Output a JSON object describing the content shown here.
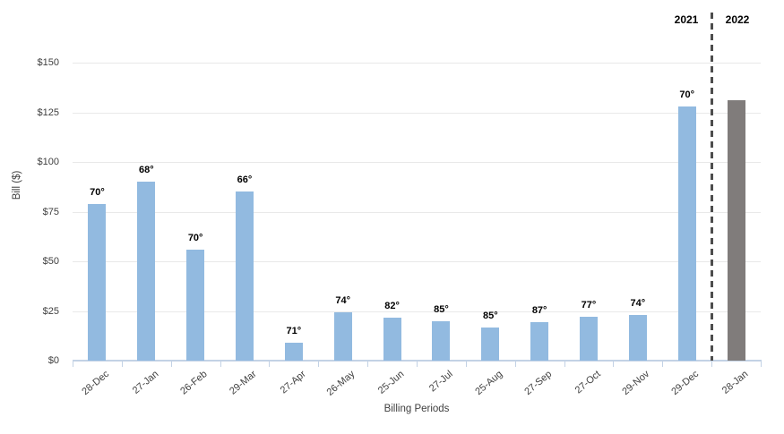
{
  "chart_data": {
    "type": "bar",
    "title": "",
    "xlabel": "Billing Periods",
    "ylabel": "Bill ($)",
    "ylim": [
      0,
      150
    ],
    "ytick_step": 25,
    "ytick_labels": [
      "$0",
      "$25",
      "$50",
      "$75",
      "$100",
      "$125",
      "$150"
    ],
    "grid": "horizontal",
    "legend_position": "none",
    "categories": [
      "28-Dec",
      "27-Jan",
      "26-Feb",
      "29-Mar",
      "27-Apr",
      "26-May",
      "25-Jun",
      "27-Jul",
      "25-Aug",
      "27-Sep",
      "27-Oct",
      "29-Nov",
      "29-Dec",
      "28-Jan"
    ],
    "series": [
      {
        "name": "2021",
        "color": "#92bae0",
        "values": [
          79,
          90,
          56,
          85,
          9,
          24.5,
          21.5,
          20,
          16.5,
          19.5,
          22,
          23,
          128,
          null
        ]
      },
      {
        "name": "2022",
        "color": "#807c7b",
        "values": [
          null,
          null,
          null,
          null,
          null,
          null,
          null,
          null,
          null,
          null,
          null,
          null,
          null,
          131
        ]
      }
    ],
    "point_labels": [
      "70°",
      "68°",
      "70°",
      "66°",
      "71°",
      "74°",
      "82°",
      "85°",
      "85°",
      "87°",
      "77°",
      "74°",
      "70°",
      null
    ],
    "divider": {
      "after_category_index": 12,
      "left_label": "2021",
      "right_label": "2022"
    }
  },
  "colors": {
    "bar_2021": "#92bae0",
    "bar_2022": "#807c7b",
    "gridline": "#e9e9e9",
    "axis": "#c3d2e5",
    "tick_text": "#404040",
    "annotation_text": "#000000",
    "divider": "#4d4d4d",
    "background": "#ffffff"
  }
}
